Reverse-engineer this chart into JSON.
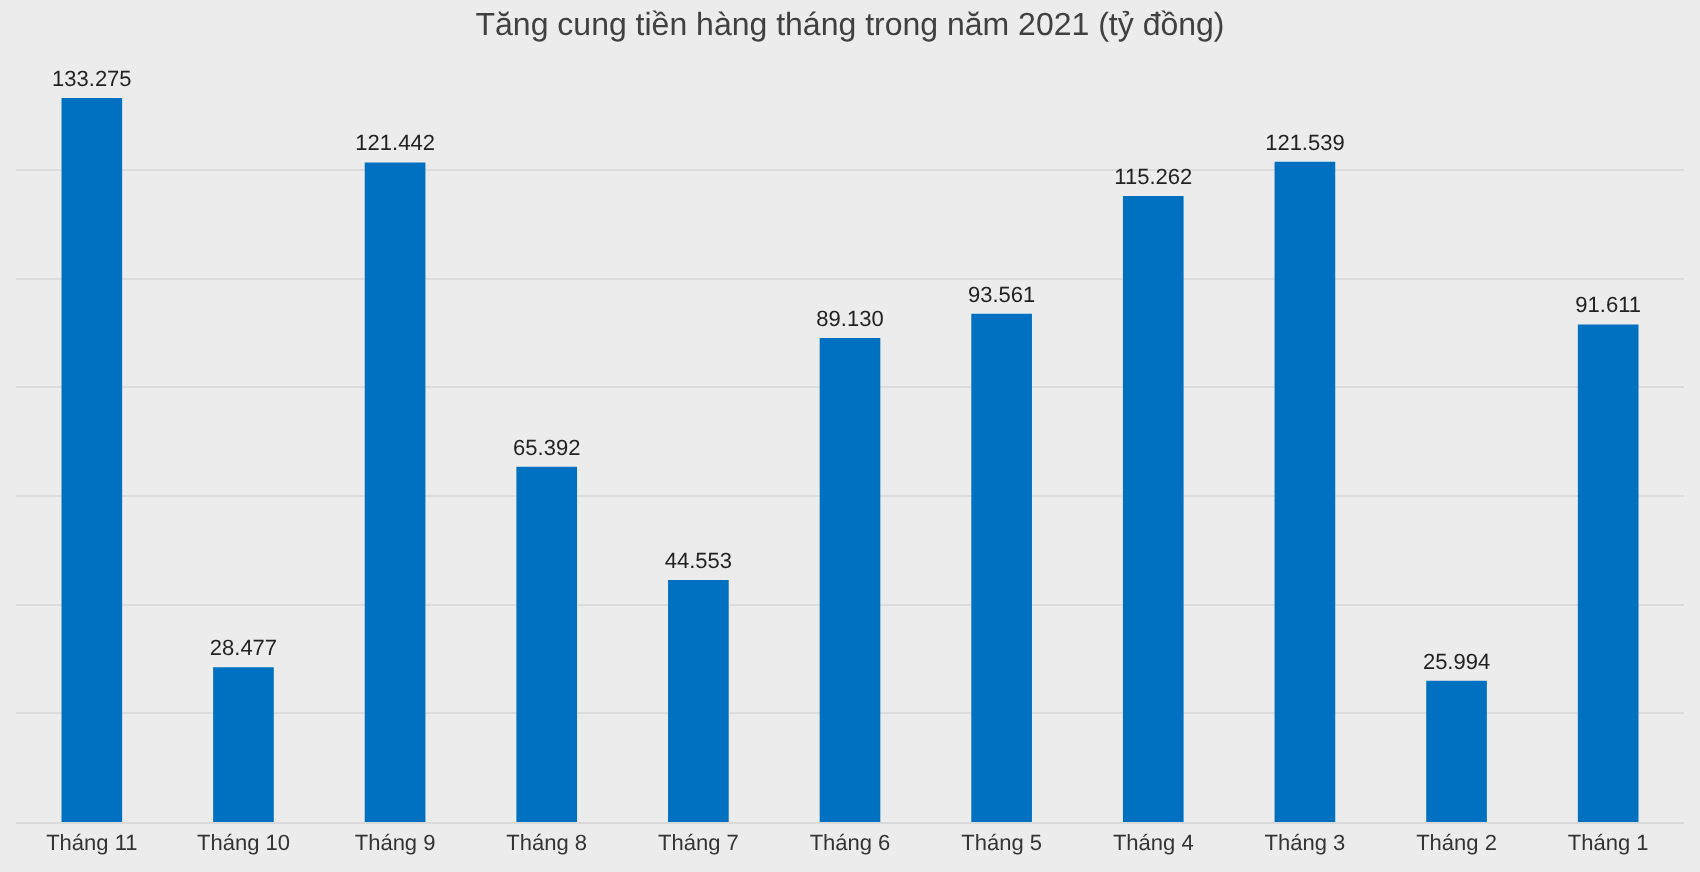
{
  "chart_data": {
    "type": "bar",
    "title": "Tăng cung tiền hàng tháng trong năm 2021 (tỷ đồng)",
    "categories": [
      "Tháng 11",
      "Tháng 10",
      "Tháng 9",
      "Tháng 8",
      "Tháng 7",
      "Tháng 6",
      "Tháng 5",
      "Tháng 4",
      "Tháng 3",
      "Tháng 2",
      "Tháng 1"
    ],
    "values": [
      133275,
      28477,
      121442,
      65392,
      44553,
      89130,
      93561,
      115262,
      121539,
      25994,
      91611
    ],
    "value_labels": [
      "133.275",
      "28.477",
      "121.442",
      "65.392",
      "44.553",
      "89.130",
      "93.561",
      "115.262",
      "121.539",
      "25.994",
      "91.611"
    ],
    "color": "#0070c0",
    "grid": "y",
    "tick_labels": "x"
  }
}
